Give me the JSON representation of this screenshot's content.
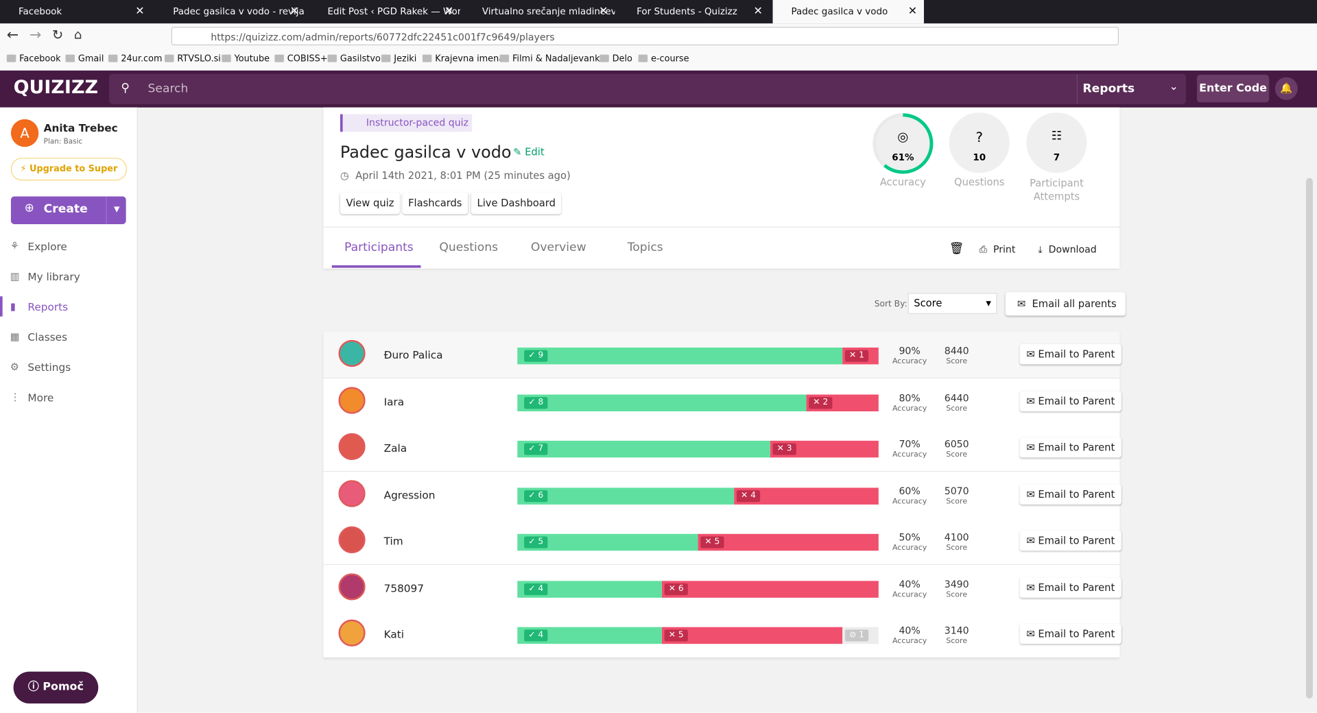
{
  "browser": {
    "tabs": [
      "Facebook",
      "Padec gasilca v vodo - revija Ga",
      "Edit Post ‹ PGD Rakek — WordPress",
      "Virtualno srečanje mladincev – PGD",
      "For Students - Quizizz",
      "Padec gasilca v vodo"
    ],
    "url": "https://quizizz.com/admin/reports/60772dfc22451c001f7c9649/players",
    "bookmarks": [
      "Facebook",
      "Gmail",
      "24ur.com",
      "RTVSLO.si",
      "Youtube",
      "COBISS+",
      "Gasilstvo",
      "Jeziki",
      "Krajevna imena",
      "Filmi & Nadaljevanke",
      "Delo",
      "e-course"
    ]
  },
  "app": {
    "logo": "QUIZIZZ",
    "search": "Search",
    "menu": "Reports",
    "enter_code": "Enter Code"
  },
  "sidebar": {
    "avatar": "A",
    "user": "Anita Trebec",
    "plan": "Plan: Basic",
    "upgrade": "Upgrade to Super",
    "create": "Create",
    "nav": [
      "Explore",
      "My library",
      "Reports",
      "Classes",
      "Settings",
      "More"
    ],
    "help": "Pomoč"
  },
  "quiz": {
    "mode": "Instructor-paced quiz",
    "title": "Padec gasilca v vodo",
    "edit": "Edit",
    "date": "April 14th 2021, 8:01 PM (25 minutes ago)",
    "buttons": [
      "View quiz",
      "Flashcards",
      "Live Dashboard"
    ]
  },
  "stats": {
    "accuracy": {
      "value": 61,
      "label": "61%",
      "caption": "Accuracy"
    },
    "questions": {
      "value": 10,
      "caption": "Questions"
    },
    "attempts": {
      "value": 7,
      "caption": "Participant Attempts"
    }
  },
  "tabs": [
    "Participants",
    "Questions",
    "Overview",
    "Topics"
  ],
  "actions": {
    "print": "Print",
    "download": "Download"
  },
  "sort": {
    "label": "Sort By:",
    "value": "Score",
    "email_all": "Email all parents"
  },
  "columns": {
    "accuracy": "Accuracy",
    "score": "Score",
    "email": "Email to Parent"
  },
  "players": [
    {
      "name": "Đuro Palica",
      "correct": 9,
      "incorrect": 1,
      "skipped": 0,
      "accuracy": 90,
      "accuracy_label": "90%",
      "score": 8440
    },
    {
      "name": "Iara",
      "correct": 8,
      "incorrect": 2,
      "skipped": 0,
      "accuracy": 80,
      "accuracy_label": "80%",
      "score": 6440
    },
    {
      "name": "Zala",
      "correct": 7,
      "incorrect": 3,
      "skipped": 0,
      "accuracy": 70,
      "accuracy_label": "70%",
      "score": 6050
    },
    {
      "name": "Agression",
      "correct": 6,
      "incorrect": 4,
      "skipped": 0,
      "accuracy": 60,
      "accuracy_label": "60%",
      "score": 5070
    },
    {
      "name": "Tim",
      "correct": 5,
      "incorrect": 5,
      "skipped": 0,
      "accuracy": 50,
      "accuracy_label": "50%",
      "score": 4100
    },
    {
      "name": "758097",
      "correct": 4,
      "incorrect": 6,
      "skipped": 0,
      "accuracy": 40,
      "accuracy_label": "40%",
      "score": 3490
    },
    {
      "name": "Kati",
      "correct": 4,
      "incorrect": 5,
      "skipped": 1,
      "accuracy": 40,
      "accuracy_label": "40%",
      "score": 3140
    }
  ]
}
